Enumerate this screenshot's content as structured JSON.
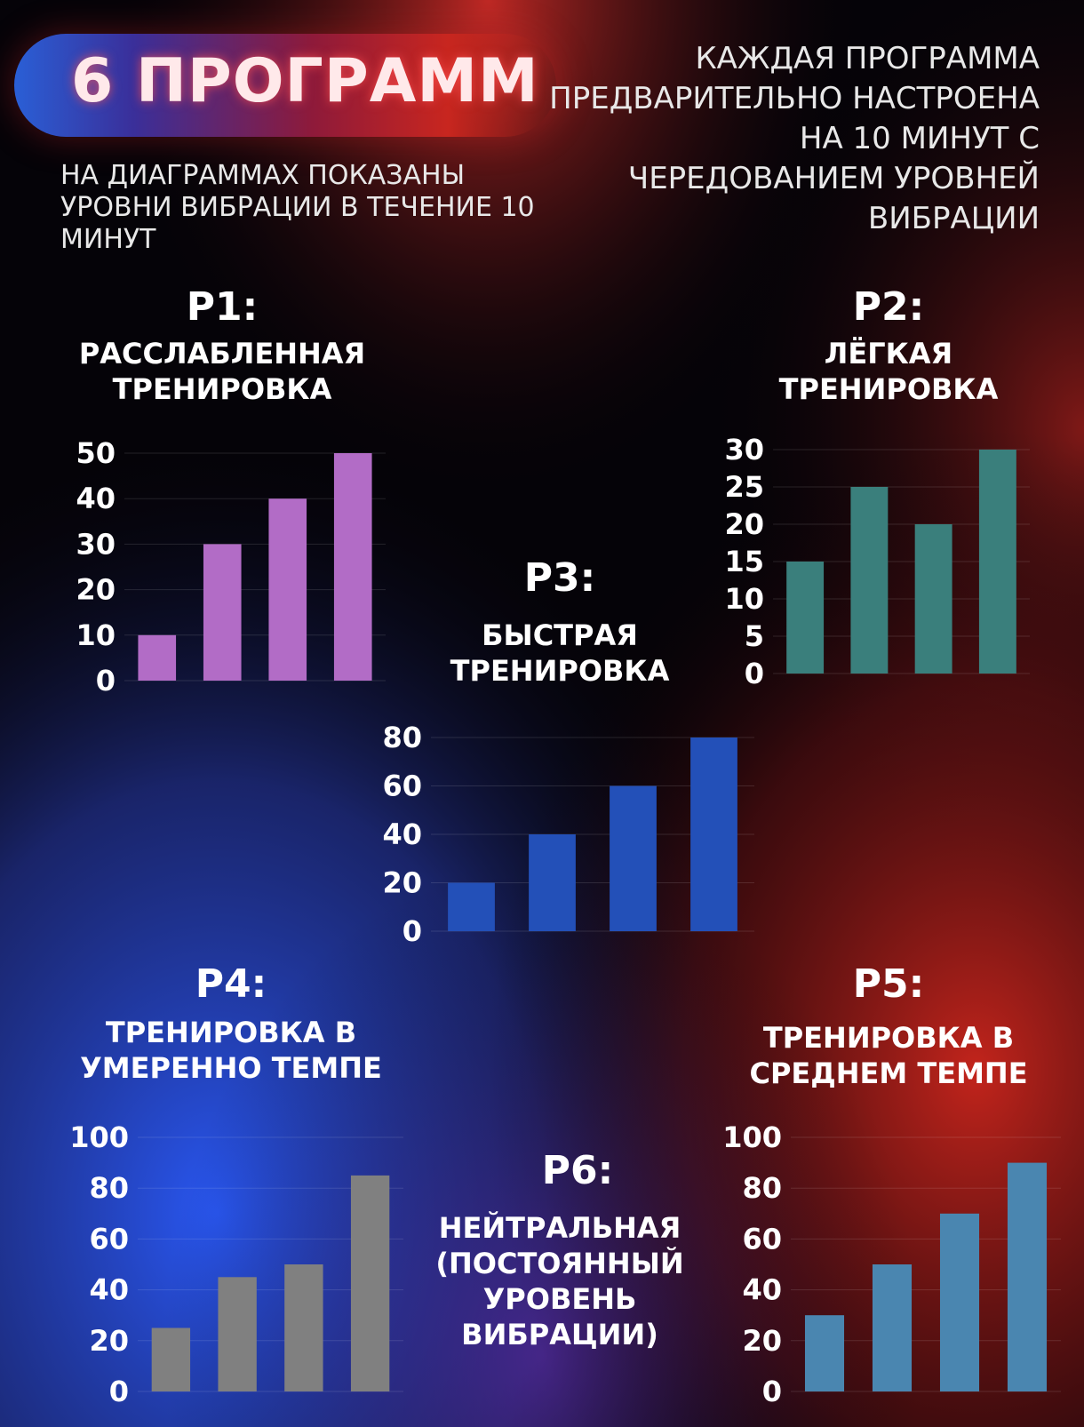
{
  "header": {
    "title": "6 ПРОГРАММ",
    "note_right": "КАЖДАЯ ПРОГРАММА ПРЕДВАРИТЕЛЬНО НАСТРОЕНА НА 10 МИНУТ С ЧЕРЕДОВАНИЕМ УРОВНЕЙ ВИБРАЦИИ",
    "note_left": "НА ДИАГРАММАХ ПОКАЗАНЫ УРОВНИ ВИБРАЦИИ В ТЕЧЕНИЕ 10 МИНУТ"
  },
  "programs": {
    "p1": {
      "code": "P1:",
      "name": "РАССЛАБЛЕННАЯ\nТРЕНИРОВКА"
    },
    "p2": {
      "code": "P2:",
      "name": "ЛЁГКАЯ\nТРЕНИРОВКА"
    },
    "p3": {
      "code": "P3:",
      "name": "БЫСТРАЯ\nТРЕНИРОВКА"
    },
    "p4": {
      "code": "P4:",
      "name": "ТРЕНИРОВКА В\nУМЕРЕННО ТЕМПЕ"
    },
    "p5": {
      "code": "P5:",
      "name": "ТРЕНИРОВКА В\nСРЕДНЕМ ТЕМПЕ"
    },
    "p6": {
      "code": "P6:",
      "name": "НЕЙТРАЛЬНАЯ\n(ПОСТОЯННЫЙ\nУРОВЕНЬ\nВИБРАЦИИ)"
    }
  },
  "chart_data": [
    {
      "id": "p1",
      "type": "bar",
      "values": [
        10,
        30,
        40,
        50
      ],
      "ylim": [
        0,
        50
      ],
      "yticks": [
        0,
        10,
        20,
        30,
        40,
        50
      ],
      "color": "#b26cc6",
      "grid": true
    },
    {
      "id": "p2",
      "type": "bar",
      "values": [
        15,
        25,
        20,
        30
      ],
      "ylim": [
        0,
        30
      ],
      "yticks": [
        0,
        5,
        10,
        15,
        20,
        25,
        30
      ],
      "color": "#3a7f7c",
      "grid": true
    },
    {
      "id": "p3",
      "type": "bar",
      "values": [
        20,
        40,
        60,
        80
      ],
      "ylim": [
        0,
        80
      ],
      "yticks": [
        0,
        20,
        40,
        60,
        80
      ],
      "color": "#2350b8",
      "grid": true
    },
    {
      "id": "p4",
      "type": "bar",
      "values": [
        25,
        45,
        50,
        85
      ],
      "ylim": [
        0,
        100
      ],
      "yticks": [
        0,
        20,
        40,
        60,
        80,
        100
      ],
      "color": "#808080",
      "grid": true
    },
    {
      "id": "p5",
      "type": "bar",
      "values": [
        30,
        50,
        70,
        90
      ],
      "ylim": [
        0,
        100
      ],
      "yticks": [
        0,
        20,
        40,
        60,
        80,
        100
      ],
      "color": "#4a86b0",
      "grid": true
    }
  ]
}
